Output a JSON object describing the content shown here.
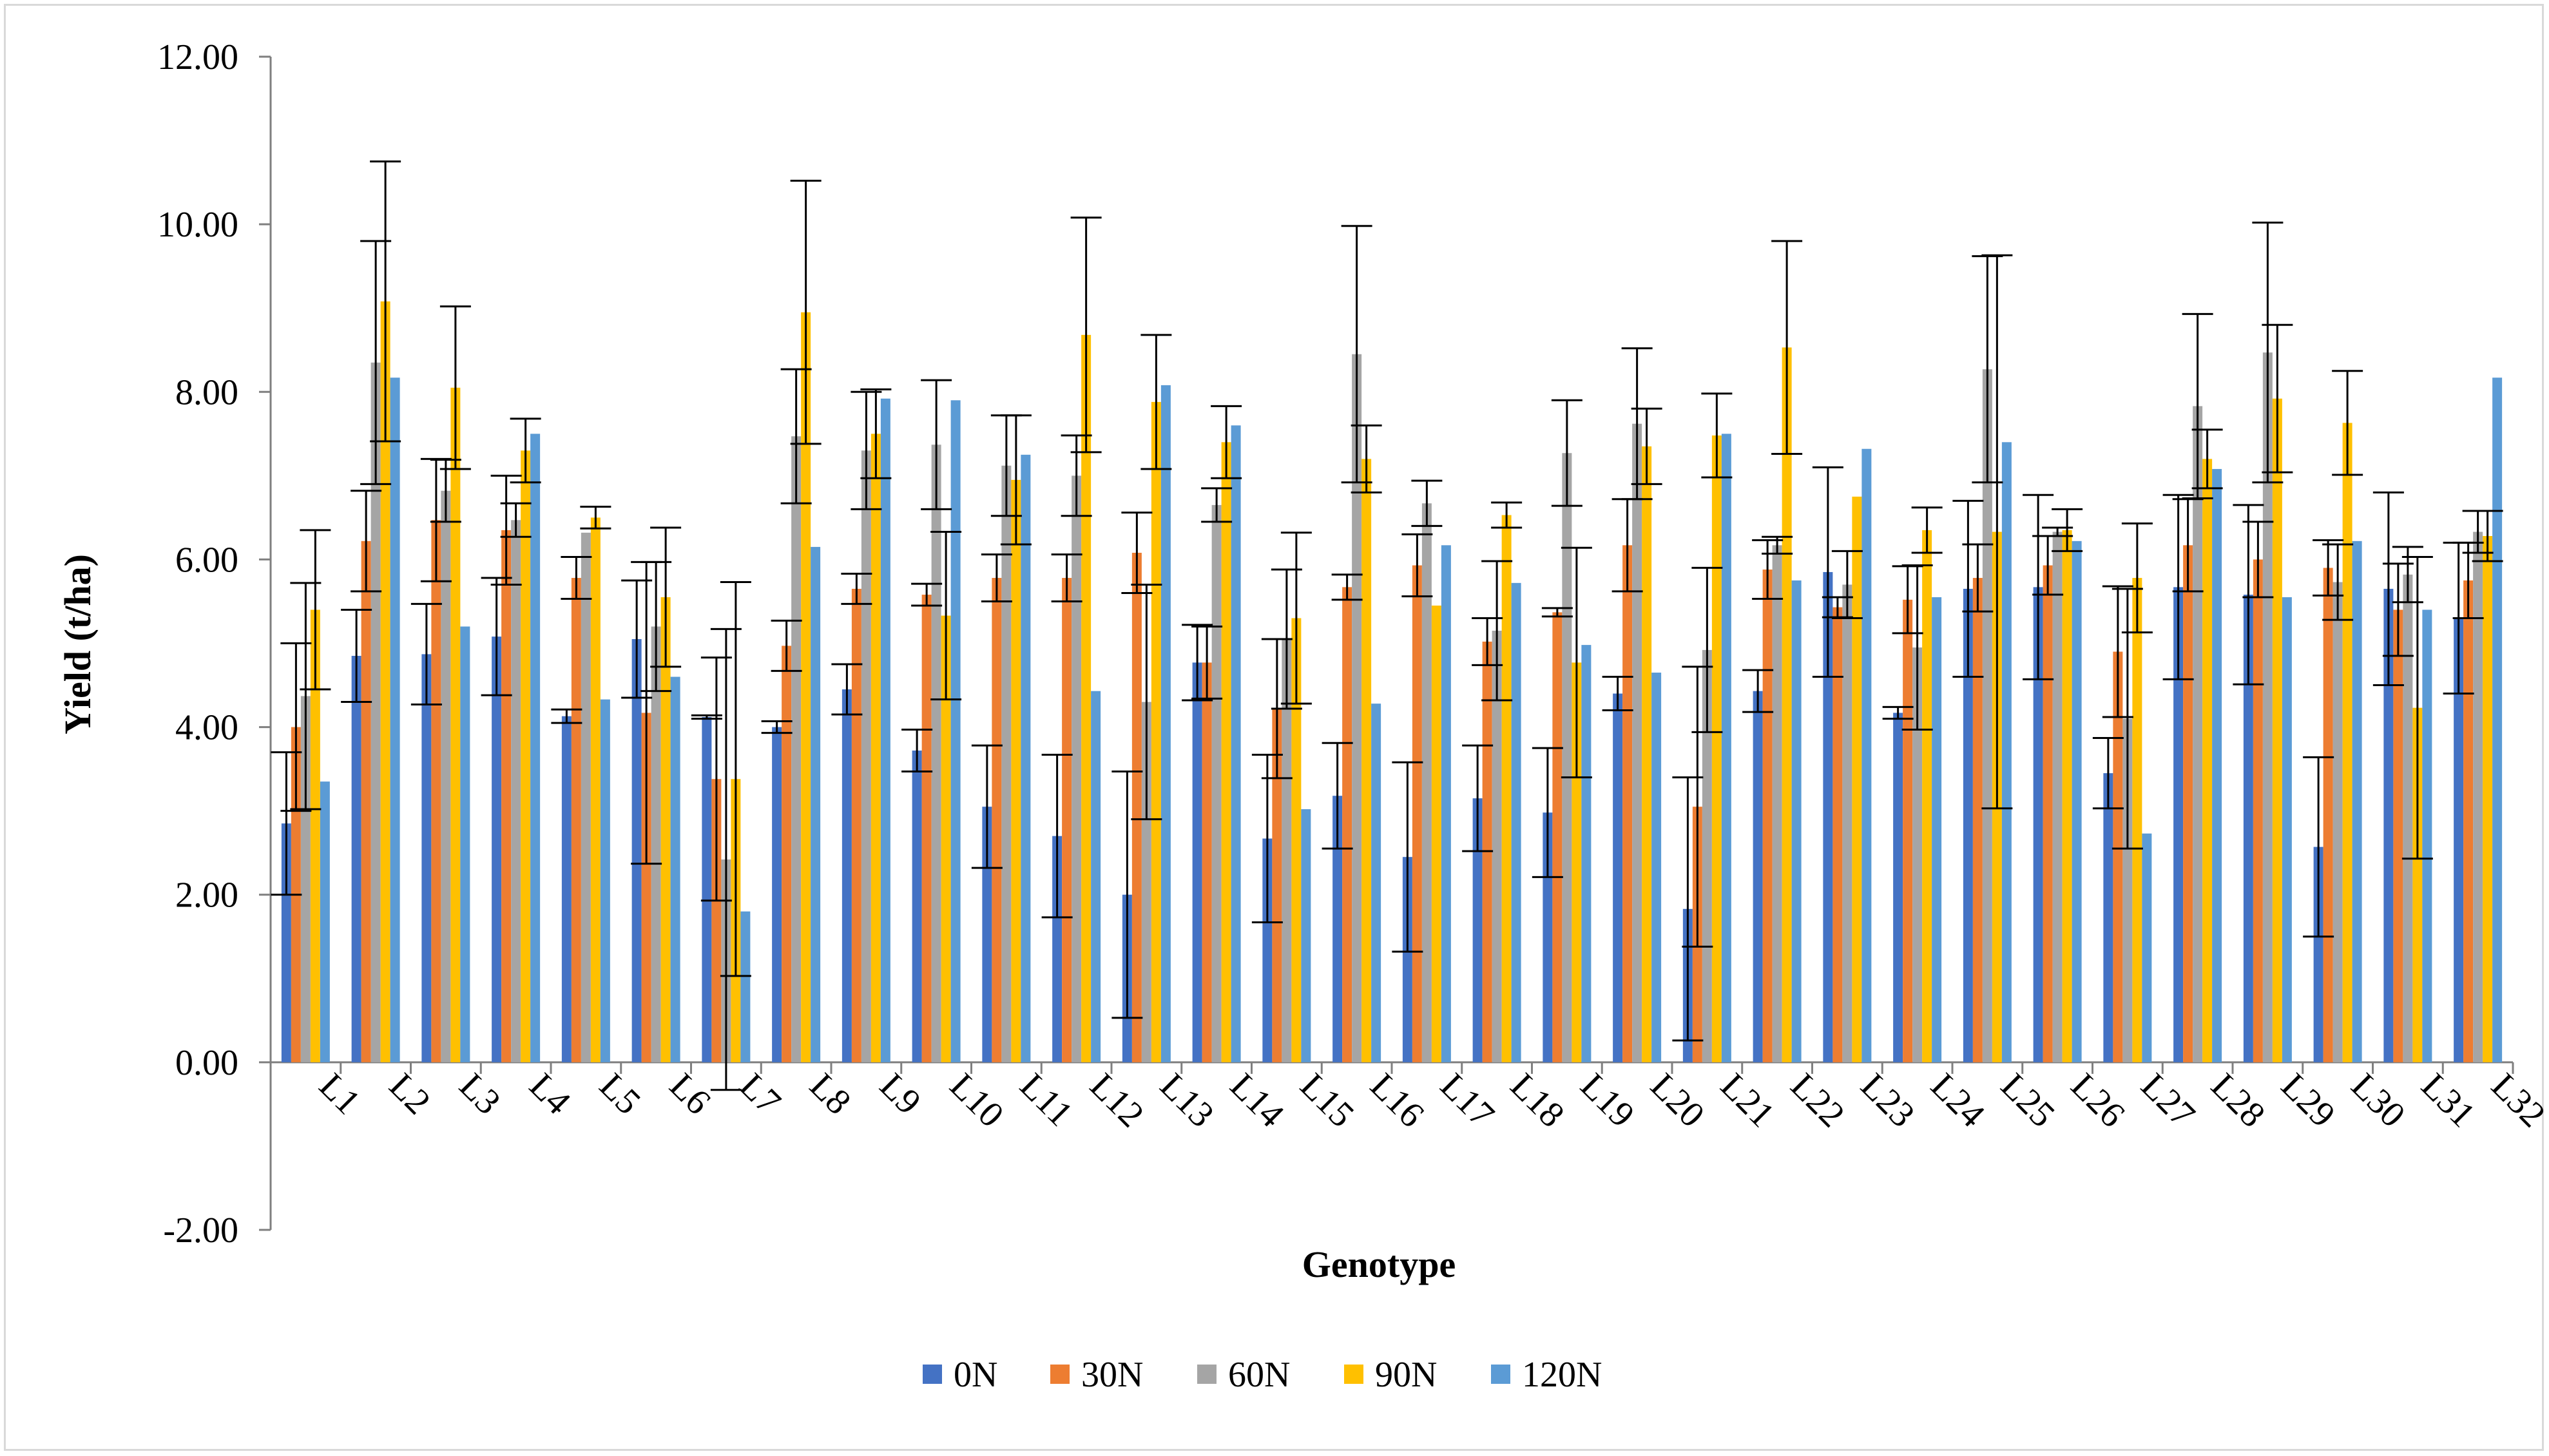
{
  "chart_data": {
    "type": "bar",
    "title": "",
    "xlabel": "Genotype",
    "ylabel": "Yield (t/ha)",
    "ylim": [
      -2,
      12
    ],
    "yticks": [
      "12.00",
      "10.00",
      "8.00",
      "6.00",
      "4.00",
      "2.00",
      "0.00",
      "-2.00"
    ],
    "categories": [
      "L1",
      "L2",
      "L3",
      "L4",
      "L5",
      "L6",
      "L7",
      "L8",
      "L9",
      "L10",
      "L11",
      "L12",
      "L13",
      "L14",
      "L15",
      "L16",
      "L17",
      "L18",
      "L19",
      "L20",
      "L21",
      "L22",
      "L23",
      "L24",
      "L25",
      "L26",
      "L27",
      "L28",
      "L29",
      "L30",
      "L31",
      "L32"
    ],
    "legend_position": "bottom",
    "series": [
      {
        "name": "0N",
        "color": "#4472c4",
        "values": [
          2.85,
          4.85,
          4.87,
          5.08,
          4.13,
          5.05,
          4.12,
          4.0,
          4.45,
          3.72,
          3.05,
          2.7,
          2.0,
          4.77,
          2.67,
          3.18,
          2.45,
          3.15,
          2.98,
          4.4,
          1.83,
          4.43,
          5.85,
          4.17,
          5.65,
          5.67,
          3.45,
          5.67,
          5.58,
          2.57,
          5.65,
          5.3
        ],
        "errors": [
          0.85,
          0.55,
          0.6,
          0.7,
          0.08,
          0.7,
          0.02,
          0.07,
          0.3,
          0.25,
          0.73,
          0.97,
          1.47,
          0.45,
          1.0,
          0.63,
          1.13,
          0.63,
          0.77,
          0.2,
          1.57,
          0.25,
          1.25,
          0.07,
          1.05,
          1.1,
          0.42,
          1.1,
          1.07,
          1.07,
          1.15,
          0.9
        ]
      },
      {
        "name": "30N",
        "color": "#ed7d31",
        "values": [
          4.0,
          6.22,
          6.47,
          6.35,
          5.78,
          4.17,
          3.38,
          4.97,
          5.65,
          5.58,
          5.78,
          5.78,
          6.08,
          4.77,
          4.22,
          5.67,
          5.93,
          5.02,
          5.37,
          6.17,
          3.05,
          5.88,
          5.43,
          5.52,
          5.78,
          5.93,
          4.9,
          6.17,
          6.0,
          5.9,
          5.4,
          5.75
        ],
        "errors": [
          1.0,
          0.6,
          0.73,
          0.65,
          0.25,
          1.8,
          1.45,
          0.3,
          0.18,
          0.13,
          0.28,
          0.28,
          0.48,
          0.43,
          0.83,
          0.15,
          0.37,
          0.28,
          0.05,
          0.55,
          1.67,
          0.35,
          0.12,
          0.4,
          0.4,
          0.35,
          0.78,
          0.55,
          0.45,
          0.33,
          0.55,
          0.45
        ]
      },
      {
        "name": "60N",
        "color": "#a5a5a5",
        "values": [
          4.37,
          8.35,
          6.82,
          6.47,
          6.32,
          5.2,
          2.42,
          7.47,
          7.3,
          7.37,
          7.12,
          7.0,
          4.3,
          6.65,
          5.05,
          8.45,
          6.67,
          5.15,
          7.27,
          7.62,
          4.92,
          6.17,
          5.7,
          4.95,
          8.27,
          6.33,
          4.1,
          7.83,
          8.47,
          5.73,
          5.82,
          6.33
        ],
        "errors": [
          1.35,
          1.45,
          0.37,
          0.2,
          0.0,
          0.77,
          2.75,
          0.8,
          0.7,
          0.77,
          0.6,
          0.48,
          1.4,
          0.2,
          0.83,
          1.53,
          0.27,
          0.83,
          0.63,
          0.9,
          0.98,
          0.1,
          0.4,
          0.98,
          1.35,
          0.05,
          1.55,
          1.1,
          1.55,
          0.45,
          0.33,
          0.25
        ]
      },
      {
        "name": "90N",
        "color": "#ffc000",
        "values": [
          5.4,
          9.08,
          8.05,
          7.3,
          6.5,
          5.55,
          3.38,
          8.95,
          7.5,
          5.33,
          6.95,
          8.68,
          7.88,
          7.4,
          5.3,
          7.2,
          5.45,
          6.53,
          4.77,
          7.35,
          7.48,
          8.53,
          6.75,
          6.35,
          6.33,
          6.35,
          5.78,
          7.2,
          7.92,
          7.63,
          4.23,
          6.28
        ],
        "errors": [
          0.95,
          1.67,
          0.97,
          0.38,
          0.13,
          0.83,
          2.35,
          1.57,
          0.53,
          1.0,
          0.77,
          1.4,
          0.8,
          0.43,
          1.02,
          0.4,
          0.0,
          0.15,
          1.37,
          0.45,
          0.5,
          1.27,
          0.0,
          0.27,
          3.3,
          0.25,
          0.65,
          0.35,
          0.88,
          0.62,
          1.8,
          0.3
        ]
      },
      {
        "name": "120N",
        "color": "#5b9bd5",
        "values": [
          3.35,
          8.17,
          5.2,
          7.5,
          4.33,
          4.6,
          1.8,
          6.15,
          7.92,
          7.9,
          7.25,
          4.43,
          8.08,
          7.6,
          3.02,
          4.28,
          6.17,
          5.72,
          4.98,
          4.65,
          7.5,
          5.75,
          7.32,
          5.55,
          7.4,
          6.22,
          2.73,
          7.08,
          5.55,
          6.22,
          5.4,
          8.17
        ],
        "errors": [
          0.0,
          0.0,
          0.0,
          0.0,
          0.0,
          0.0,
          0.0,
          0.0,
          0.0,
          0.0,
          0.0,
          0.0,
          0.0,
          0.0,
          0.0,
          0.0,
          0.0,
          0.0,
          0.0,
          0.0,
          0.0,
          0.0,
          0.0,
          0.0,
          0.0,
          0.0,
          0.0,
          0.0,
          0.0,
          0.0,
          0.0,
          0.0
        ]
      }
    ]
  }
}
